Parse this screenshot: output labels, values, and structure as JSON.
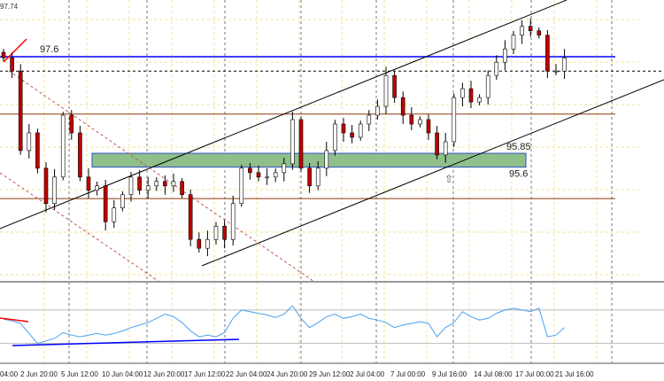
{
  "chart_data": [
    {
      "type": "candlestick",
      "top_price_label": "97.74",
      "ylim": [
        93.6,
        98.6
      ],
      "closes": [
        97.58,
        97.34,
        95.9,
        96.22,
        95.58,
        94.94,
        95.42,
        96.54,
        96.22,
        95.42,
        95.18,
        95.26,
        94.61,
        94.86,
        95.1,
        95.42,
        95.18,
        95.26,
        95.34,
        95.26,
        95.34,
        95.1,
        94.29,
        94.13,
        94.29,
        94.53,
        94.29,
        94.94,
        95.58,
        95.5,
        95.42,
        95.42,
        95.5,
        95.66,
        96.46,
        95.58,
        95.26,
        95.58,
        95.9,
        96.38,
        96.22,
        96.14,
        96.38,
        96.54,
        96.7,
        97.26,
        96.86,
        96.54,
        96.38,
        96.46,
        96.22,
        95.82,
        96.06,
        96.86,
        97.02,
        96.78,
        96.86,
        97.26,
        97.5,
        97.74,
        97.99,
        98.15,
        98.07,
        97.99,
        97.34,
        97.34,
        97.58
      ],
      "horizontal_levels": [
        {
          "price": 97.6,
          "label": "97.6",
          "color": "#0000ff"
        },
        {
          "price": 97.34,
          "label": "",
          "color": "#000000",
          "style": "dashed"
        },
        {
          "price": 96.56,
          "label": "",
          "color": "#8b3a0f"
        },
        {
          "price": 95.03,
          "label": "",
          "color": "#8b3a0f"
        }
      ],
      "zone": {
        "high": 95.85,
        "low": 95.6,
        "high_label": "95.85",
        "low_label": "95.6",
        "color": "#8fbf8a"
      },
      "arrow_label": "⇧",
      "x_labels": [
        "04:00",
        "2 Jun 20:00",
        "5 Jun 12:00",
        "10 Jun 04:00",
        "12 Jun 20:00",
        "17 Jun 12:00",
        "22 Jun 04:00",
        "24 Jun 20:00",
        "29 Jun 12:00",
        "2 Jul 04:00",
        "7 Jul 00:00",
        "9 Jul 16:00",
        "14 Jul 08:00",
        "17 Jul 00:00",
        "21 Jul 16:00"
      ]
    },
    {
      "type": "line",
      "ylim": [
        0,
        100
      ],
      "levels": [
        70,
        30
      ],
      "values": [
        59,
        57,
        54,
        42,
        30,
        33,
        36,
        43,
        40,
        38,
        40,
        42,
        40,
        42,
        45,
        49,
        52,
        55,
        60,
        65,
        62,
        55,
        45,
        38,
        40,
        38,
        43,
        60,
        70,
        68,
        66,
        64,
        61,
        65,
        75,
        60,
        49,
        55,
        62,
        65,
        60,
        62,
        65,
        60,
        58,
        55,
        49,
        52,
        54,
        56,
        54,
        38,
        49,
        55,
        68,
        62,
        58,
        60,
        66,
        70,
        72,
        70,
        68,
        72,
        38,
        40,
        49
      ],
      "color": "#4aa0f0"
    }
  ],
  "colors": {
    "bull": "#000000",
    "bear": "#c00000",
    "grid": "#f0e090"
  }
}
